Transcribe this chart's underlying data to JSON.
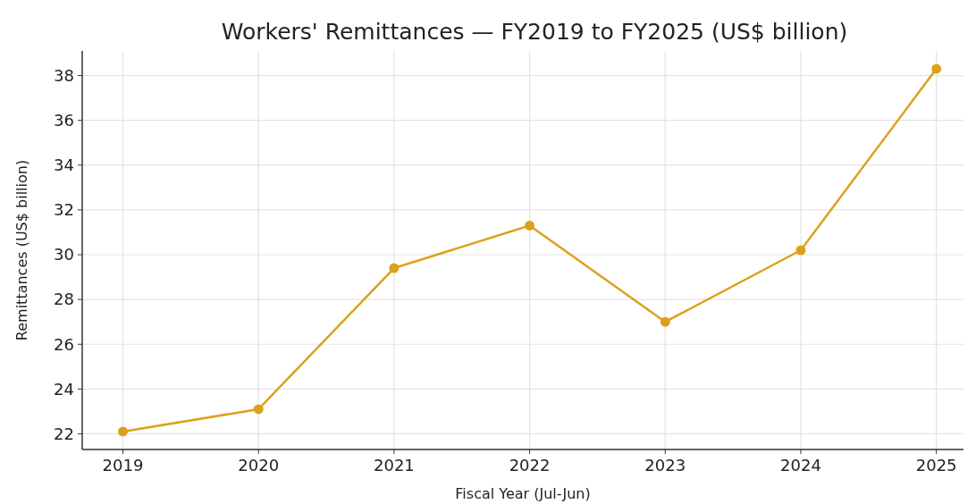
{
  "chart_data": {
    "type": "line",
    "title": "Workers' Remittances — FY2019 to FY2025 (US$ billion)",
    "xlabel": "Fiscal Year (Jul-Jun)",
    "ylabel": "Remittances (US$ billion)",
    "x": [
      2019,
      2020,
      2021,
      2022,
      2023,
      2024,
      2025
    ],
    "series": [
      {
        "color": "#dca11c",
        "values": [
          22.1,
          23.1,
          29.4,
          31.3,
          27.0,
          30.2,
          38.3
        ]
      }
    ],
    "xlim": [
      2018.7,
      2025.2
    ],
    "xticks": [
      2019,
      2020,
      2021,
      2022,
      2023,
      2024,
      2025
    ],
    "ylim": [
      21.3,
      39.1
    ],
    "yticks": [
      22,
      24,
      26,
      28,
      30,
      32,
      34,
      36,
      38
    ],
    "grid": true,
    "marker": "circle",
    "line_style": "solid"
  }
}
